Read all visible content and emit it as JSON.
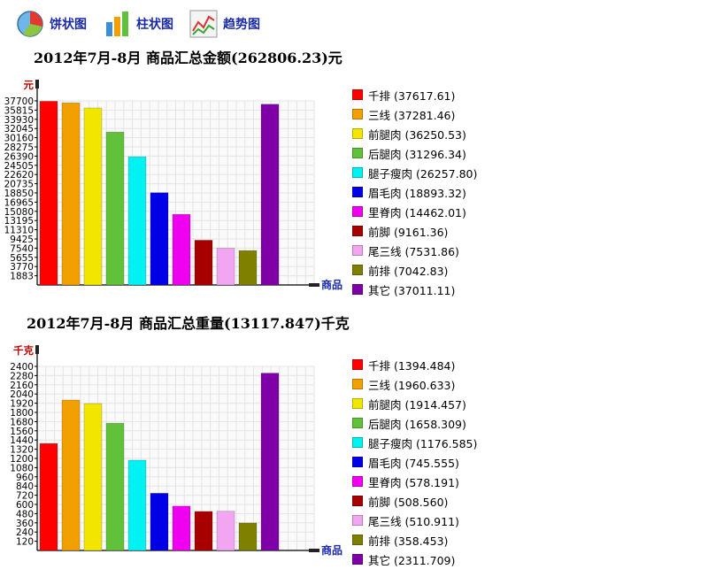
{
  "toolbar": {
    "items": [
      {
        "label": "饼状图",
        "icon": "pie-chart-icon"
      },
      {
        "label": "柱状图",
        "icon": "bar-chart-icon"
      },
      {
        "label": "趋势图",
        "icon": "line-chart-icon"
      }
    ]
  },
  "colors": [
    "#ff0000",
    "#f2a000",
    "#f2e600",
    "#62c13a",
    "#00f2f2",
    "#0000e6",
    "#f000f0",
    "#a60000",
    "#f2a6f2",
    "#7f7f00",
    "#7f00a6"
  ],
  "chart_data": [
    {
      "type": "bar",
      "title": "2012年7月-8月 商品汇总金额(262806.23)元",
      "ylabel": "元",
      "xlabel": "商品",
      "categories": [
        "千排",
        "三线",
        "前腿肉",
        "后腿肉",
        "腿子瘦肉",
        "眉毛肉",
        "里脊肉",
        "前脚",
        "尾三线",
        "前排",
        "其它"
      ],
      "values": [
        37617.61,
        37281.46,
        36250.53,
        31296.34,
        26257.8,
        18893.32,
        14462.01,
        9161.36,
        7531.86,
        7042.83,
        37011.11
      ],
      "legend": [
        "千排 (37617.61)",
        "三线 (37281.46)",
        "前腿肉 (36250.53)",
        "后腿肉 (31296.34)",
        "腿子瘦肉 (26257.80)",
        "眉毛肉 (18893.32)",
        "里脊肉 (14462.01)",
        "前脚 (9161.36)",
        "尾三线 (7531.86)",
        "前排 (7042.83)",
        "其它 (37011.11)"
      ],
      "yticks": [
        "1883",
        "3770",
        "5655",
        "7540",
        "9425",
        "11310",
        "13195",
        "15080",
        "16965",
        "18850",
        "20735",
        "22620",
        "24505",
        "26390",
        "28275",
        "30160",
        "32045",
        "33930",
        "35815",
        "37700"
      ],
      "ylim": [
        0,
        37700
      ],
      "grid": true,
      "legend_position": "right"
    },
    {
      "type": "bar",
      "title": "2012年7月-8月 商品汇总重量(13117.847)千克",
      "ylabel": "千克",
      "xlabel": "商品",
      "categories": [
        "千排",
        "三线",
        "前腿肉",
        "后腿肉",
        "腿子瘦肉",
        "眉毛肉",
        "里脊肉",
        "前脚",
        "尾三线",
        "前排",
        "其它"
      ],
      "values": [
        1394.484,
        1960.633,
        1914.457,
        1658.309,
        1176.585,
        745.555,
        578.191,
        508.56,
        510.911,
        358.453,
        2311.709
      ],
      "legend": [
        "千排 (1394.484)",
        "三线 (1960.633)",
        "前腿肉 (1914.457)",
        "后腿肉 (1658.309)",
        "腿子瘦肉 (1176.585)",
        "眉毛肉 (745.555)",
        "里脊肉 (578.191)",
        "前脚 (508.560)",
        "尾三线 (510.911)",
        "前排 (358.453)",
        "其它 (2311.709)"
      ],
      "yticks": [
        "120",
        "240",
        "360",
        "480",
        "600",
        "720",
        "840",
        "960",
        "1080",
        "1200",
        "1320",
        "1440",
        "1560",
        "1680",
        "1800",
        "1920",
        "2040",
        "2160",
        "2280",
        "2400"
      ],
      "ylim": [
        0,
        2400
      ],
      "grid": true,
      "legend_position": "right"
    }
  ]
}
